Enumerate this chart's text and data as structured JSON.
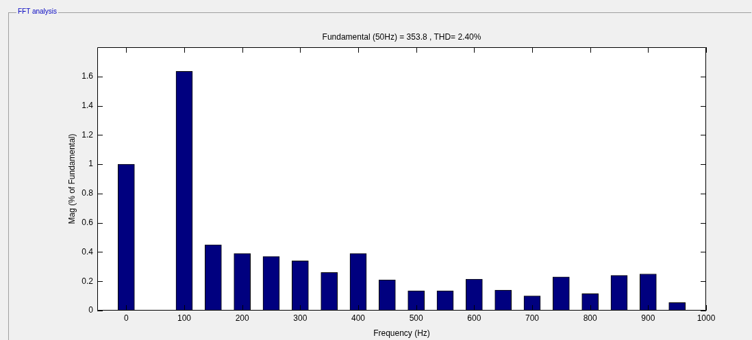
{
  "chart_data": {
    "type": "bar",
    "title": "Fundamental (50Hz) = 353.8 , THD= 2.40%",
    "xlabel": "Frequency (Hz)",
    "ylabel": "Mag (% of Fundamental)",
    "annotations": [
      "FFT analysis"
    ],
    "x": [
      0,
      50,
      100,
      150,
      200,
      250,
      300,
      350,
      400,
      450,
      500,
      550,
      600,
      650,
      700,
      750,
      800,
      850,
      900,
      950
    ],
    "values": [
      1.0,
      null,
      1.635,
      0.45,
      0.39,
      0.37,
      0.34,
      0.26,
      0.39,
      0.21,
      0.135,
      0.135,
      0.215,
      0.14,
      0.1,
      0.23,
      0.115,
      0.24,
      0.25,
      0.055
    ],
    "color": "#00007f",
    "xlim": [
      -50,
      1000
    ],
    "xticks": [
      0,
      100,
      200,
      300,
      400,
      500,
      600,
      700,
      800,
      900,
      1000
    ],
    "ylim": [
      0,
      1.8
    ],
    "yticks": [
      0,
      0.2,
      0.4,
      0.6,
      0.8,
      1,
      1.2,
      1.4,
      1.6
    ],
    "grid": false,
    "legend": false
  }
}
